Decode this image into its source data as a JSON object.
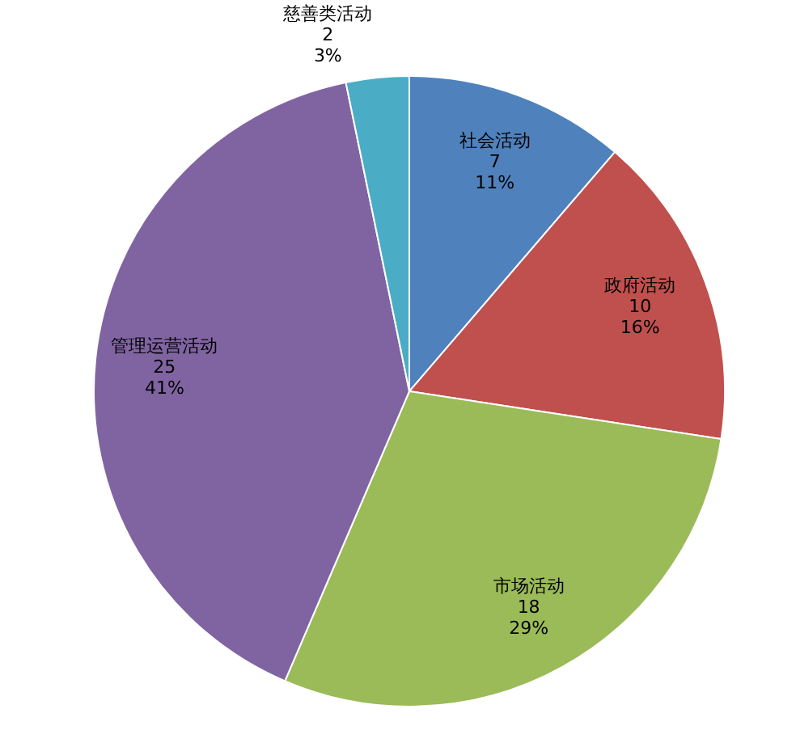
{
  "chart_data": {
    "type": "pie",
    "categories": [
      "社会活动",
      "政府活动",
      "市场活动",
      "管理运营活动",
      "慈善类活动"
    ],
    "values": [
      7,
      10,
      18,
      25,
      2
    ],
    "colors": [
      "#4f81bd",
      "#c0504d",
      "#9bbb59",
      "#8064a2",
      "#4bacc6"
    ],
    "value_labels": [
      "7\n11%",
      "10\n16%",
      "18\n29%",
      "25\n41%",
      "2\n3%"
    ]
  }
}
